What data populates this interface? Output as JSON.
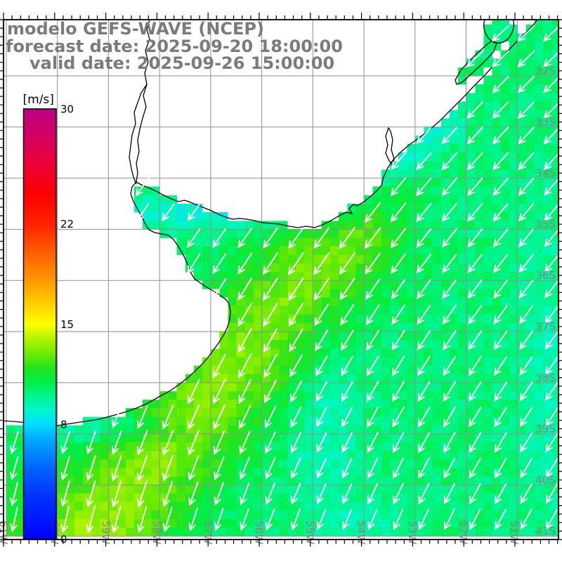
{
  "title": {
    "line1": "modelo GEFS-WAVE (NCEP)",
    "line2": "forecast date: 2025-09-20 18:00:00",
    "line3": "valid date: 2025-09-26 15:00:00",
    "color": "#7b7b7b"
  },
  "colorbar": {
    "unit_label": "[m/s]",
    "min": 0,
    "max": 30,
    "tick_labels": [
      "30",
      "22",
      "15",
      "8",
      "0"
    ],
    "tick_values": [
      30,
      22,
      15,
      8,
      0
    ],
    "gradient_stops": [
      {
        "value": 0,
        "color": "#0000ff"
      },
      {
        "value": 3,
        "color": "#0033ff"
      },
      {
        "value": 5,
        "color": "#0066ff"
      },
      {
        "value": 7,
        "color": "#00aaff"
      },
      {
        "value": 8,
        "color": "#00ddff"
      },
      {
        "value": 9,
        "color": "#00f7cc"
      },
      {
        "value": 10,
        "color": "#00f58c"
      },
      {
        "value": 11,
        "color": "#00ee44"
      },
      {
        "value": 12,
        "color": "#27e31c"
      },
      {
        "value": 13,
        "color": "#72ec00"
      },
      {
        "value": 14,
        "color": "#b4f400"
      },
      {
        "value": 15,
        "color": "#ffff00"
      },
      {
        "value": 16.5,
        "color": "#ffcc00"
      },
      {
        "value": 18,
        "color": "#ff9900"
      },
      {
        "value": 20,
        "color": "#ff5e00"
      },
      {
        "value": 22,
        "color": "#ff2200"
      },
      {
        "value": 24,
        "color": "#fd0000"
      },
      {
        "value": 26,
        "color": "#ee0033"
      },
      {
        "value": 28,
        "color": "#d60061"
      },
      {
        "value": 30,
        "color": "#bd0080"
      }
    ]
  },
  "map": {
    "lat_labels": [
      "32S",
      "33S",
      "34S",
      "35S",
      "36S",
      "37S",
      "38S",
      "39S",
      "40S",
      "41S"
    ],
    "lon_labels": [
      "61W",
      "60W",
      "59W",
      "58W",
      "57W",
      "56W",
      "55W",
      "54W",
      "53W",
      "52W",
      "51W"
    ],
    "grid_color": "#8f8f8f",
    "geo_label_color": "#848484",
    "coast_color": "#000000",
    "land_color": "#ffffff",
    "arrow_color": "#ffffff",
    "frame_color": "#000000"
  },
  "chart_data": {
    "type": "heatmap",
    "quantity": "wind/wave speed",
    "unit": "m/s",
    "scale_range": [
      0,
      30
    ],
    "scale_ticks": [
      0,
      8,
      15,
      22,
      30
    ],
    "region_values": [
      {
        "area": "Rio de la Plata estuary (inner)",
        "speed_ms": 8.7
      },
      {
        "area": "band offshore Uruguayan coast",
        "speed_ms": 9.2
      },
      {
        "area": "open Atlantic, northeast sector",
        "speed_ms": 10.5
      },
      {
        "area": "diagonal band from estuary mouth to southwest corner",
        "speed_ms": 13.0
      },
      {
        "area": "near Buenos Aires south coast",
        "speed_ms": 8.8
      },
      {
        "area": "bottom-left corner",
        "speed_ms": 12.8
      },
      {
        "area": "cyan trough ~56W below 37S",
        "speed_ms": 9.3
      },
      {
        "area": "right edge mid-latitudes",
        "speed_ms": 9.6
      }
    ],
    "vectors": "white arrows pointing southwest in the northeast, rotating to south near the coast and bottom",
    "legend_position": "left vertical colorbar"
  }
}
